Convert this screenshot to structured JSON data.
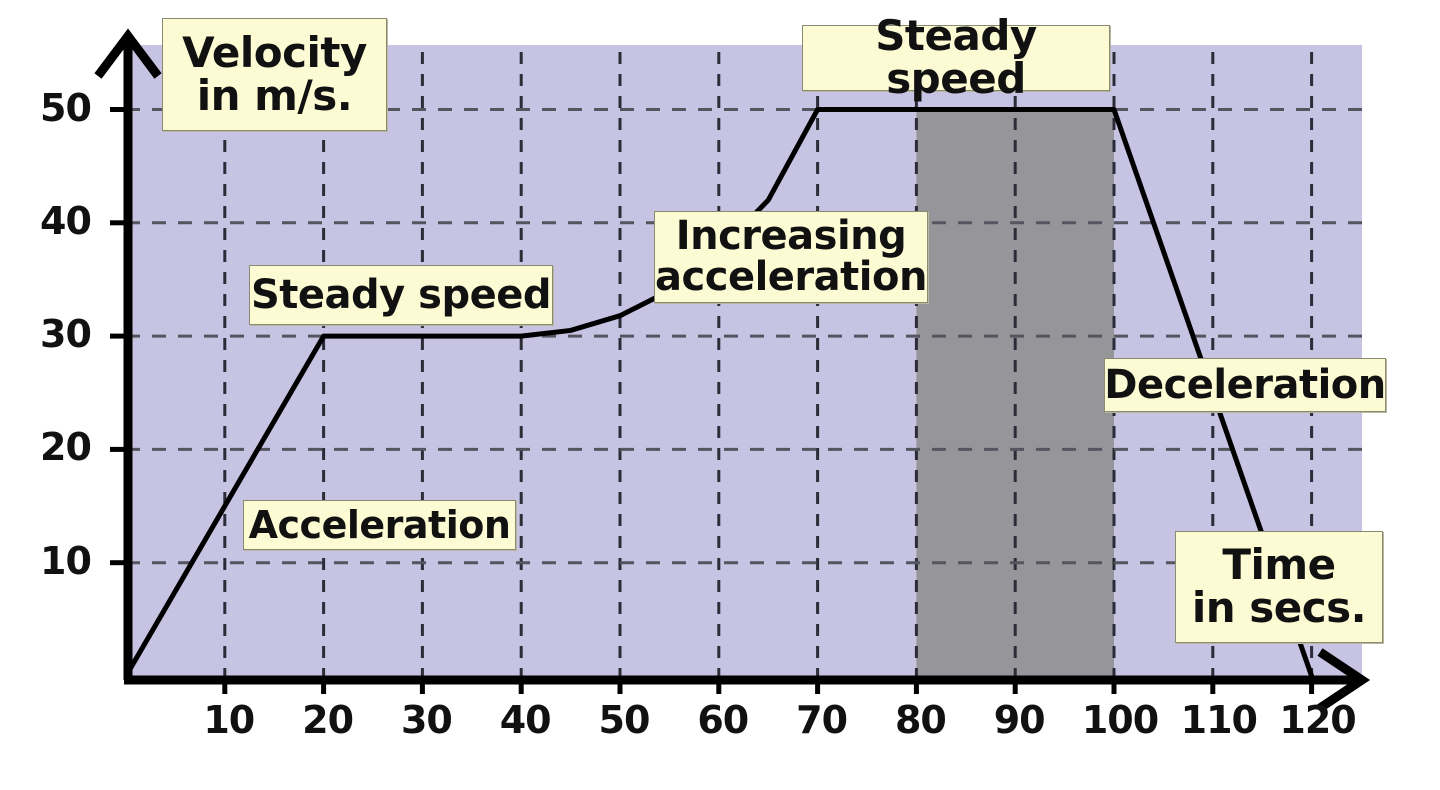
{
  "chart_data": {
    "type": "line",
    "title": "",
    "xlabel": "Time in secs.",
    "ylabel": "Velocity in m/s.",
    "xlim": [
      0,
      125
    ],
    "ylim": [
      0,
      55
    ],
    "grid": true,
    "grid_style": "dashed",
    "x_ticks": [
      10,
      20,
      30,
      40,
      50,
      60,
      70,
      80,
      90,
      100,
      110,
      120
    ],
    "y_ticks": [
      10,
      20,
      30,
      40,
      50
    ],
    "series": [
      {
        "name": "Velocity",
        "points": [
          {
            "x": 0,
            "y": 0
          },
          {
            "x": 20,
            "y": 30
          },
          {
            "x": 40,
            "y": 30
          },
          {
            "x": 45,
            "y": 30.5
          },
          {
            "x": 50,
            "y": 31.8
          },
          {
            "x": 55,
            "y": 34
          },
          {
            "x": 60,
            "y": 37.5
          },
          {
            "x": 65,
            "y": 42
          },
          {
            "x": 70,
            "y": 50
          },
          {
            "x": 100,
            "y": 50
          },
          {
            "x": 120,
            "y": 0
          }
        ]
      }
    ],
    "shaded_region": {
      "x_start": 80,
      "x_end": 100,
      "y_top": 50,
      "color": "#96969a"
    },
    "annotations": [
      {
        "text": "Acceleration",
        "x_range": [
          0,
          20
        ]
      },
      {
        "text": "Steady speed",
        "x_range": [
          20,
          40
        ],
        "y": 30
      },
      {
        "text": "Increasing acceleration",
        "x_range": [
          40,
          70
        ]
      },
      {
        "text": "Steady speed",
        "x_range": [
          70,
          100
        ],
        "y": 50
      },
      {
        "text": "Deceleration",
        "x_range": [
          100,
          120
        ]
      }
    ],
    "colors": {
      "plot_background": "#c7c3e2",
      "shaded_region": "#96969a",
      "label_box": "#fdfbd3",
      "line": "#000000",
      "grid": "#4a4a55"
    }
  },
  "labels": {
    "y_axis_line1": "Velocity",
    "y_axis_line2": "in m/s.",
    "x_axis_line1": "Time",
    "x_axis_line2": "in secs.",
    "steady_speed_1": "Steady speed",
    "steady_speed_2": "Steady speed",
    "acceleration": "Acceleration",
    "increasing_line1": "Increasing",
    "increasing_line2": "acceleration",
    "deceleration": "Deceleration"
  },
  "x_tick_labels": [
    "10",
    "20",
    "30",
    "40",
    "50",
    "60",
    "70",
    "80",
    "90",
    "100",
    "110",
    "120"
  ],
  "y_tick_labels": [
    "10",
    "20",
    "30",
    "40",
    "50"
  ]
}
